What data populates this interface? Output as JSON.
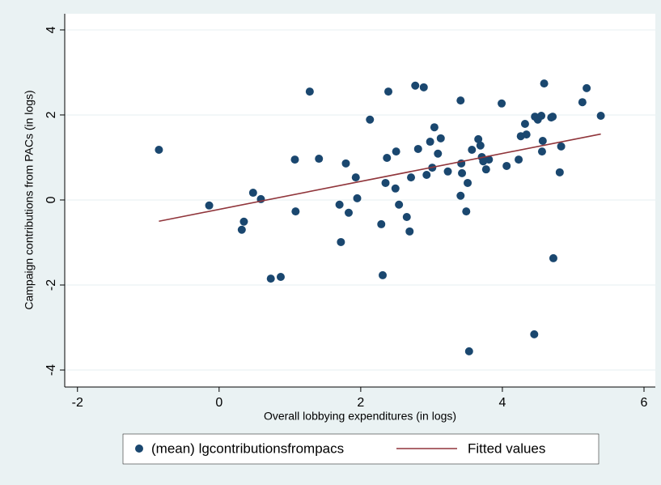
{
  "chart_data": {
    "type": "scatter",
    "xlabel": "Overall lobbying expenditures (in logs)",
    "ylabel": "Campaign contributions from PACs (in logs)",
    "xlim": [
      -2.18,
      6.16
    ],
    "xticks": [
      -2,
      0,
      2,
      4,
      6
    ],
    "ylim": [
      -4.4,
      4.38
    ],
    "yticks": [
      -4,
      -2,
      0,
      2,
      4
    ],
    "grid": true,
    "series": [
      {
        "name": "(mean) lgcontributionsfrompacs",
        "type": "scatter",
        "color": "#1a476f",
        "x": [
          -0.85,
          -0.14,
          0.32,
          0.35,
          0.48,
          0.59,
          0.73,
          0.87,
          1.07,
          1.08,
          1.28,
          1.41,
          1.7,
          1.72,
          1.79,
          1.83,
          1.93,
          1.95,
          2.13,
          2.29,
          2.31,
          2.35,
          2.37,
          2.39,
          2.49,
          2.5,
          2.54,
          2.65,
          2.69,
          2.71,
          2.77,
          2.81,
          2.89,
          2.93,
          2.98,
          3.01,
          3.04,
          3.09,
          3.13,
          3.23,
          3.41,
          3.41,
          3.42,
          3.43,
          3.49,
          3.51,
          3.53,
          3.57,
          3.66,
          3.69,
          3.71,
          3.73,
          3.77,
          3.81,
          3.99,
          4.06,
          4.23,
          4.26,
          4.32,
          4.34,
          4.45,
          4.46,
          4.5,
          4.55,
          4.56,
          4.57,
          4.59,
          4.69,
          4.71,
          4.72,
          4.81,
          4.83,
          5.13,
          5.19,
          5.39
        ],
        "values": [
          1.18,
          -0.13,
          -0.7,
          -0.51,
          0.17,
          0.02,
          -1.85,
          -1.81,
          0.95,
          -0.27,
          2.55,
          0.97,
          -0.11,
          -0.99,
          0.86,
          -0.3,
          0.53,
          0.04,
          1.89,
          -0.57,
          -1.77,
          0.4,
          0.99,
          2.55,
          0.27,
          1.14,
          -0.11,
          -0.4,
          -0.74,
          0.53,
          2.69,
          1.2,
          2.65,
          0.59,
          1.37,
          0.76,
          1.71,
          1.09,
          1.45,
          0.67,
          2.34,
          0.1,
          0.86,
          0.63,
          -0.27,
          0.4,
          -3.56,
          1.18,
          1.43,
          1.28,
          1.01,
          0.91,
          0.72,
          0.95,
          2.27,
          0.8,
          0.95,
          1.5,
          1.79,
          1.54,
          -3.16,
          1.96,
          1.89,
          1.98,
          1.14,
          1.39,
          2.74,
          1.94,
          1.96,
          -1.37,
          0.65,
          1.26,
          2.3,
          2.63,
          1.98
        ]
      },
      {
        "name": "Fitted values",
        "type": "line",
        "color": "#90353b",
        "x": [
          -0.85,
          5.39
        ],
        "values": [
          -0.5,
          1.55
        ]
      }
    ]
  }
}
